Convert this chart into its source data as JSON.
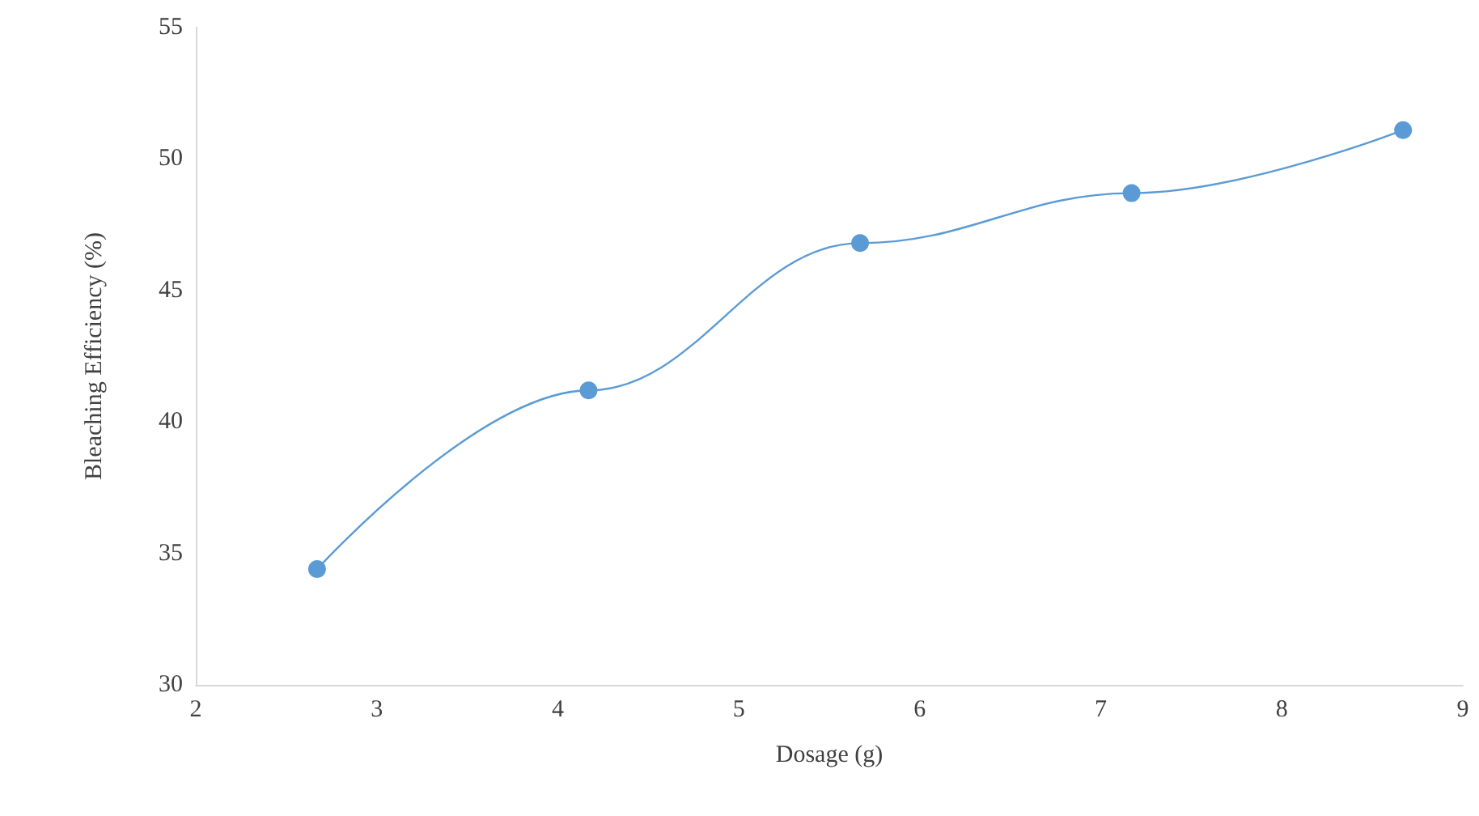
{
  "chart_data": {
    "type": "line",
    "xlabel": "Dosage (g)",
    "ylabel": "Bleaching Efficiency (%)",
    "x": [
      2.67,
      4.17,
      5.67,
      7.17,
      8.67
    ],
    "series": [
      {
        "color": "#5b9bd5",
        "values": [
          34.4,
          41.2,
          46.8,
          48.7,
          51.1
        ]
      }
    ],
    "xlim": [
      2,
      9
    ],
    "xticks": [
      2,
      3,
      4,
      5,
      6,
      7,
      8,
      9
    ],
    "ylim": [
      30,
      55
    ],
    "yticks": [
      30,
      35,
      40,
      45,
      50,
      55
    ],
    "grid": false,
    "marker": "circle",
    "line_style": "solid"
  }
}
